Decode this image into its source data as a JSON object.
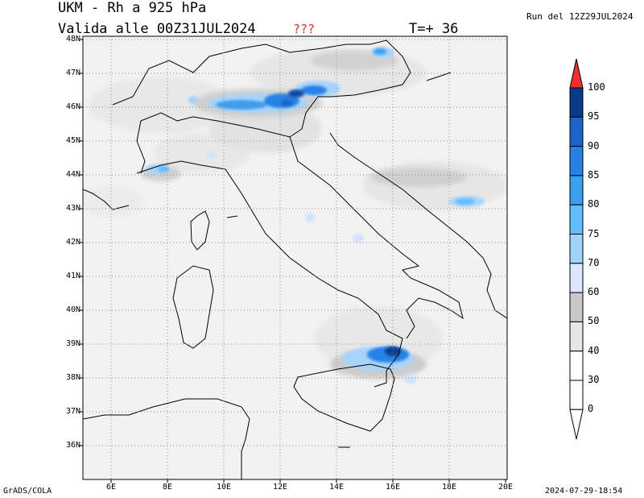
{
  "header": {
    "title": "UKM - Rh a 925 hPa",
    "valid": "Valida alle 00Z31JUL2024",
    "question_marks": "???",
    "timestep": "T=+ 36",
    "run": "Run del 12Z29JUL2024"
  },
  "footer": {
    "software": "GrADS/COLA",
    "timestamp": "2024-07-29-18:54"
  },
  "map": {
    "lat_labels": [
      "48N",
      "47N",
      "46N",
      "45N",
      "44N",
      "43N",
      "42N",
      "41N",
      "40N",
      "39N",
      "38N",
      "37N",
      "36N"
    ],
    "lon_labels": [
      "6E",
      "8E",
      "10E",
      "12E",
      "14E",
      "16E",
      "18E",
      "20E"
    ],
    "colorbar": {
      "labels": [
        "100",
        "95",
        "90",
        "85",
        "80",
        "75",
        "70",
        "60",
        "50",
        "40",
        "30",
        "0"
      ],
      "colors": [
        "#0a3c8c",
        "#1e64c8",
        "#2882e6",
        "#3ca0f0",
        "#64beff",
        "#a0d2fa",
        "#dce6ff",
        "#c8c8c8",
        "#e6e6e6",
        "#ffffff",
        "#ffffff",
        "#ffffff"
      ],
      "top_arrow_color": "#f03030"
    }
  }
}
